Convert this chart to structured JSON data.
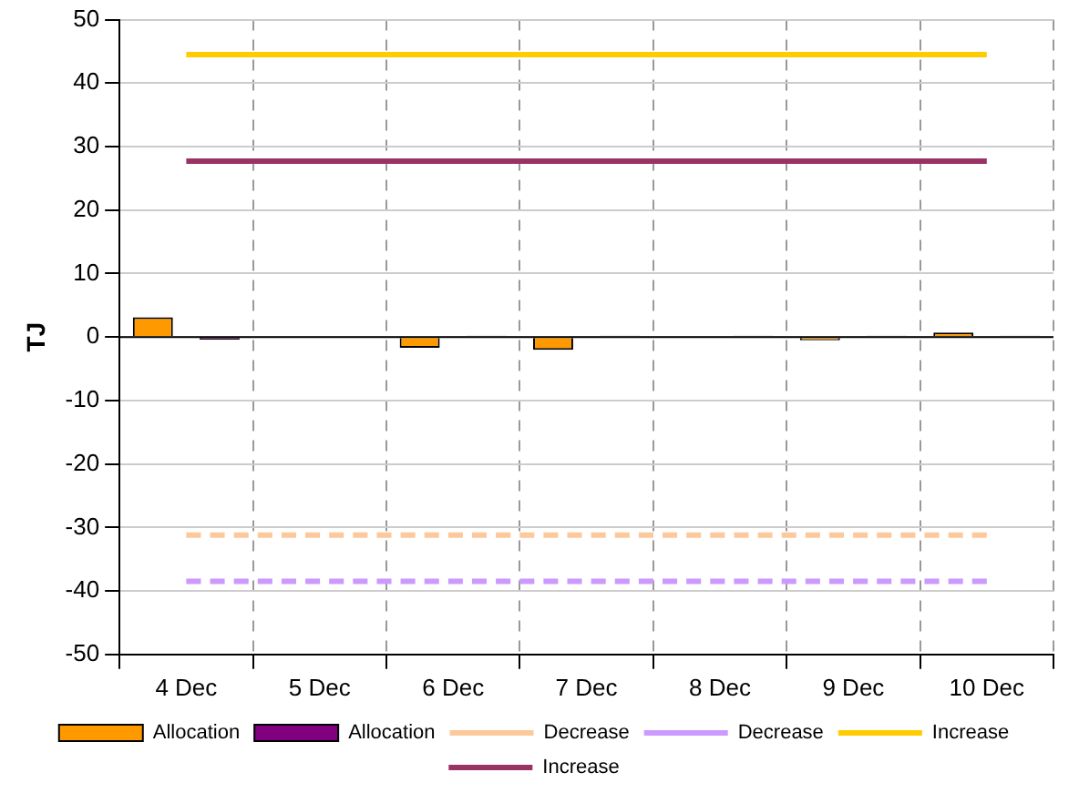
{
  "chart_data": {
    "type": "bar",
    "ylabel": "TJ",
    "categories": [
      "4 Dec",
      "5 Dec",
      "6 Dec",
      "7 Dec",
      "8 Dec",
      "9 Dec",
      "10 Dec"
    ],
    "series": [
      {
        "name": "Allocation",
        "color": "#ff9900",
        "values": [
          3.1,
          null,
          -1.7,
          -2,
          0,
          -0.5,
          0.7
        ]
      },
      {
        "name": "Allocation",
        "color": "#800080",
        "values": [
          -0.4,
          null,
          0.2,
          0.2,
          0.2,
          0.2,
          0.2
        ]
      },
      {
        "name": "Decrease",
        "type": "line",
        "color": "#fcc99c",
        "line_style": "dashed",
        "values": [
          -31.2,
          -31.2,
          -31.2,
          -31.2,
          -31.2,
          -31.2,
          -31.2
        ]
      },
      {
        "name": "Decrease",
        "type": "line",
        "color": "#cc99ff",
        "line_style": "dashed",
        "values": [
          -38.5,
          -38.5,
          -38.5,
          -38.5,
          -38.5,
          -38.5,
          -38.5
        ]
      },
      {
        "name": "Increase",
        "type": "line",
        "color": "#ffcc00",
        "line_style": "solid",
        "values": [
          44.5,
          44.5,
          44.5,
          44.5,
          44.5,
          44.5,
          44.5
        ]
      },
      {
        "name": "Increase",
        "type": "line",
        "color": "#993366",
        "line_style": "solid",
        "values": [
          27.7,
          27.7,
          27.7,
          27.7,
          27.7,
          27.7,
          27.7
        ]
      }
    ],
    "ylim": [
      -50,
      50
    ],
    "yticks": [
      -50,
      -40,
      -30,
      -20,
      -10,
      0,
      10,
      20,
      30,
      40,
      50
    ],
    "grid": true,
    "legend": "bottom",
    "marker": "none"
  }
}
